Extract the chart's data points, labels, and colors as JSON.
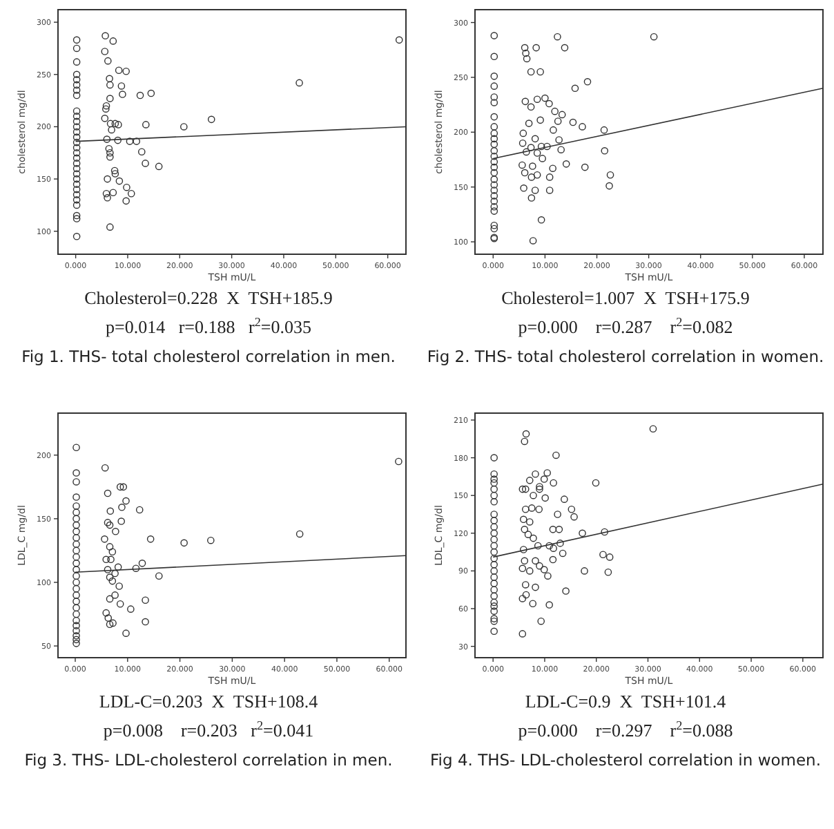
{
  "chart_data": [
    {
      "type": "scatter",
      "xlabel": "TSH mU/L",
      "ylabel": "cholesterol mg/dl",
      "xlim": [
        -3.4,
        63.5
      ],
      "ylim": [
        78,
        312
      ],
      "line_style": "solid",
      "xticks": [
        {
          "value": 0,
          "label": "0.000"
        },
        {
          "value": 10,
          "label": "10.000"
        },
        {
          "value": 20,
          "label": "20.000"
        },
        {
          "value": 30,
          "label": "30.000"
        },
        {
          "value": 40,
          "label": "40.000"
        },
        {
          "value": 50,
          "label": "50.000"
        },
        {
          "value": 60,
          "label": "60.000"
        }
      ],
      "yticks": [
        100,
        150,
        200,
        250,
        300
      ],
      "series": [
        {
          "marker": "circle",
          "color": "#333333",
          "x": [
            0.2,
            0.2,
            0.2,
            0.2,
            0.2,
            0.2,
            0.2,
            0.2,
            0.2,
            0.2,
            0.2,
            0.2,
            0.2,
            0.2,
            0.2,
            0.2,
            0.2,
            0.2,
            0.2,
            0.2,
            0.2,
            0.2,
            0.2,
            0.2,
            0.2,
            0.2,
            0.2,
            0.2,
            0.2,
            0.2,
            5.7,
            7.2,
            5.6,
            6.2,
            8.3,
            9.7,
            6.5,
            6.6,
            8.8,
            9.0,
            12.4,
            14.5,
            6.6,
            5.9,
            5.8,
            5.6,
            6.7,
            7.6,
            8.2,
            6.9,
            13.5,
            20.8,
            26.1,
            43,
            62.2,
            6.0,
            8.1,
            10.4,
            11.7,
            6.4,
            6.6,
            6.6,
            12.7,
            13.4,
            16.0,
            7.5,
            7.6,
            6.1,
            8.4,
            9.8,
            5.9,
            7.2,
            10.7,
            6.1,
            9.7,
            6.6
          ],
          "values": [
            283,
            275,
            262,
            250,
            245,
            240,
            235,
            230,
            215,
            210,
            205,
            200,
            195,
            190,
            185,
            180,
            175,
            170,
            165,
            160,
            155,
            150,
            145,
            140,
            135,
            130,
            125,
            115,
            112,
            95,
            287,
            282,
            272,
            263,
            254,
            253,
            246,
            240,
            239,
            231,
            230,
            232,
            227,
            220,
            217,
            208,
            203,
            203,
            202,
            197,
            202,
            200,
            207,
            242,
            283,
            188,
            187,
            186,
            186,
            179,
            175,
            171,
            176,
            165,
            162,
            158,
            155,
            150,
            148,
            142,
            136,
            137,
            136,
            132,
            129,
            104
          ]
        },
        {
          "type": "line",
          "color": "#333333",
          "x": [
            0,
            63.5
          ],
          "values": [
            186,
            200
          ]
        }
      ],
      "annotations": [
        "Cholesterol=0.228  X  TSH+185.9",
        "p=0.014   r=0.188   r$^{2}$=0.035",
        "Fig 1. THS- total cholesterol correlation in men."
      ]
    },
    {
      "type": "scatter",
      "xlabel": "TSH mU/L",
      "ylabel": "cholesterol mg/dl",
      "xlim": [
        -3.5,
        63.6
      ],
      "ylim": [
        88.7,
        311.7
      ],
      "line_style": "solid",
      "xticks": [
        {
          "value": 0,
          "label": "0.000"
        },
        {
          "value": 10,
          "label": "10.000"
        },
        {
          "value": 20,
          "label": "20.000"
        },
        {
          "value": 30,
          "label": "30.000"
        },
        {
          "value": 40,
          "label": "40.000"
        },
        {
          "value": 50,
          "label": "50.000"
        },
        {
          "value": 60,
          "label": "60.000"
        }
      ],
      "yticks": [
        100,
        150,
        200,
        250,
        300
      ],
      "series": [
        {
          "marker": "circle",
          "color": "#333333",
          "x": [
            0.2,
            0.2,
            0.2,
            0.2,
            0.2,
            0.2,
            0.2,
            0.2,
            0.2,
            0.2,
            0.2,
            0.2,
            0.2,
            0.2,
            0.2,
            0.2,
            0.2,
            0.2,
            0.2,
            0.2,
            0.2,
            0.2,
            0.2,
            0.2,
            0.2,
            0.2,
            0.2,
            31.0,
            12.4,
            13.8,
            6.1,
            8.3,
            6.3,
            6.5,
            7.3,
            9.1,
            18.2,
            15.8,
            10.0,
            8.5,
            6.2,
            7.3,
            10.8,
            11.9,
            13.3,
            9.1,
            12.5,
            15.4,
            17.2,
            21.4,
            11.6,
            6.9,
            5.8,
            8.1,
            12.7,
            5.7,
            7.3,
            9.3,
            10.4,
            13.1,
            21.5,
            6.4,
            8.5,
            9.5,
            14.1,
            5.6,
            7.6,
            11.5,
            17.7,
            6.1,
            8.5,
            22.6,
            10.9,
            7.4,
            5.9,
            8.1,
            10.9,
            22.4,
            7.4,
            9.3,
            7.7
          ],
          "values": [
            288,
            269,
            251,
            242,
            232,
            227,
            214,
            205,
            199,
            194,
            189,
            183,
            178,
            173,
            168,
            163,
            157,
            152,
            147,
            142,
            137,
            132,
            128,
            115,
            112,
            104,
            103,
            287,
            287,
            277,
            277,
            277,
            272,
            267,
            255,
            255,
            246,
            240,
            231,
            230,
            228,
            223,
            226,
            219,
            216,
            211,
            210,
            209,
            205,
            202,
            202,
            208,
            199,
            194,
            193,
            190,
            186,
            187,
            187,
            184,
            183,
            182,
            181,
            176,
            171,
            170,
            169,
            167,
            168,
            163,
            161,
            161,
            159,
            159,
            149,
            147,
            147,
            151,
            140,
            120,
            101
          ]
        },
        {
          "type": "line",
          "color": "#333333",
          "x": [
            0,
            63.6
          ],
          "values": [
            176,
            240
          ]
        }
      ],
      "annotations": [
        "Cholesterol=1.007  X  TSH+175.9",
        "p=0.000    r=0.287    r$^{2}$=0.082",
        "Fig 2. THS- total cholesterol correlation in women."
      ]
    },
    {
      "type": "scatter",
      "xlabel": "TSH mU/L",
      "ylabel": "LDL_C mg/dl",
      "xlim": [
        -3.3,
        63.2
      ],
      "ylim": [
        40.8,
        233
      ],
      "line_style": "solid",
      "xticks": [
        {
          "value": 0,
          "label": "0.000"
        },
        {
          "value": 10,
          "label": "10.000"
        },
        {
          "value": 20,
          "label": "20.000"
        },
        {
          "value": 30,
          "label": "30.000"
        },
        {
          "value": 40,
          "label": "40.000"
        },
        {
          "value": 50,
          "label": "50.000"
        },
        {
          "value": 60,
          "label": "60.000"
        }
      ],
      "yticks": [
        50,
        100,
        150,
        200
      ],
      "series": [
        {
          "marker": "circle",
          "color": "#333333",
          "x": [
            0.2,
            0.2,
            0.2,
            0.2,
            0.2,
            0.2,
            0.2,
            0.2,
            0.2,
            0.2,
            0.2,
            0.2,
            0.2,
            0.2,
            0.2,
            0.2,
            0.2,
            0.2,
            0.2,
            0.2,
            0.2,
            0.2,
            0.2,
            0.2,
            0.2,
            0.2,
            0.2,
            0.2,
            61.8,
            5.7,
            8.6,
            9.2,
            9.7,
            6.2,
            8.9,
            12.3,
            6.7,
            8.8,
            6.2,
            6.6,
            7.7,
            5.6,
            14.4,
            20.8,
            25.9,
            42.9,
            6.6,
            7.1,
            5.9,
            6.8,
            12.8,
            8.2,
            11.6,
            6.2,
            7.6,
            6.6,
            7.1,
            16,
            8.4,
            7.6,
            6.6,
            13.4,
            8.6,
            10.6,
            5.9,
            6.3,
            13.4,
            7.2,
            6.6,
            9.7
          ],
          "values": [
            206,
            186,
            179,
            167,
            160,
            155,
            150,
            145,
            140,
            135,
            130,
            125,
            120,
            115,
            110,
            105,
            100,
            95,
            90,
            85,
            80,
            75,
            70,
            66,
            62,
            58,
            55,
            52,
            195,
            190,
            175,
            175,
            164,
            170,
            159,
            157,
            156,
            148,
            147,
            145,
            140,
            134,
            134,
            131,
            133,
            138,
            128,
            124,
            118,
            118,
            115,
            112,
            111,
            110,
            107,
            104,
            101,
            105,
            97,
            90,
            87,
            86,
            83,
            79,
            76,
            72,
            69,
            68,
            67,
            60
          ]
        },
        {
          "type": "line",
          "color": "#333333",
          "x": [
            0,
            63.2
          ],
          "values": [
            108,
            121
          ]
        }
      ],
      "annotations": [
        "LDL-C=0.203  X  TSH+108.4",
        "p=0.008    r=0.203   r$^{2}$=0.041",
        "Fig 3. THS- LDL-cholesterol correlation in men."
      ]
    },
    {
      "type": "scatter",
      "xlabel": "TSH mU/L",
      "ylabel": "LDL_C mg/dl",
      "xlim": [
        -3.5,
        63.9
      ],
      "ylim": [
        21,
        215.5
      ],
      "line_style": "solid",
      "xticks": [
        {
          "value": 0,
          "label": "0.000"
        },
        {
          "value": 10,
          "label": "10.000"
        },
        {
          "value": 20,
          "label": "20.000"
        },
        {
          "value": 30,
          "label": "30.000"
        },
        {
          "value": 40,
          "label": "40.000"
        },
        {
          "value": 50,
          "label": "50.000"
        },
        {
          "value": 60,
          "label": "60.000"
        }
      ],
      "yticks": [
        30,
        60,
        90,
        120,
        150,
        180,
        210
      ],
      "series": [
        {
          "marker": "circle",
          "color": "#333333",
          "x": [
            0.2,
            0.2,
            0.2,
            0.2,
            0.2,
            0.2,
            0.2,
            0.2,
            0.2,
            0.2,
            0.2,
            0.2,
            0.2,
            0.2,
            0.2,
            0.2,
            0.2,
            0.2,
            0.2,
            0.2,
            0.2,
            0.2,
            0.2,
            0.2,
            0.2,
            0.2,
            0.2,
            31,
            6.4,
            6.1,
            12.2,
            10.5,
            8.2,
            7.1,
            11.7,
            19.9,
            5.7,
            6.3,
            9,
            9,
            9.9,
            7.8,
            10.1,
            13.8,
            6.3,
            7.5,
            8.9,
            12.5,
            15.2,
            15.7,
            5.9,
            7.1,
            6.1,
            11.6,
            12.8,
            17.3,
            21.6,
            6.8,
            7.8,
            13,
            8.7,
            10.9,
            5.9,
            11.7,
            13.5,
            21.3,
            22.6,
            6.1,
            8.2,
            11.6,
            9,
            9.9,
            5.7,
            7.1,
            17.7,
            22.3,
            10.6,
            6.3,
            8.2,
            14.1,
            6.4,
            5.7,
            7.7,
            10.9,
            9.3,
            5.7
          ],
          "values": [
            180,
            167,
            163,
            160,
            155,
            150,
            145,
            135,
            130,
            125,
            120,
            115,
            110,
            105,
            100,
            95,
            90,
            85,
            80,
            75,
            70,
            65,
            62,
            58,
            52,
            50,
            42,
            203,
            199,
            193,
            182,
            168,
            167,
            162,
            160,
            160,
            155,
            155,
            157,
            155,
            163,
            150,
            148,
            147,
            139,
            140,
            139,
            135,
            139,
            133,
            131,
            129,
            123,
            123,
            123,
            120,
            121,
            119,
            116,
            112,
            110,
            110,
            107,
            108,
            104,
            103,
            101,
            98,
            98,
            99,
            94,
            91,
            92,
            90,
            90,
            89,
            86,
            79,
            77,
            74,
            71,
            68,
            64,
            63,
            50,
            40
          ]
        },
        {
          "type": "line",
          "color": "#333333",
          "x": [
            0,
            63.9
          ],
          "values": [
            101,
            159
          ]
        }
      ],
      "annotations": [
        "LDL-C=0.9  X  TSH+101.4",
        "p=0.000    r=0.297    r$^{2}$=0.088",
        "Fig 4. THS- LDL-cholesterol correlation in women."
      ]
    }
  ]
}
